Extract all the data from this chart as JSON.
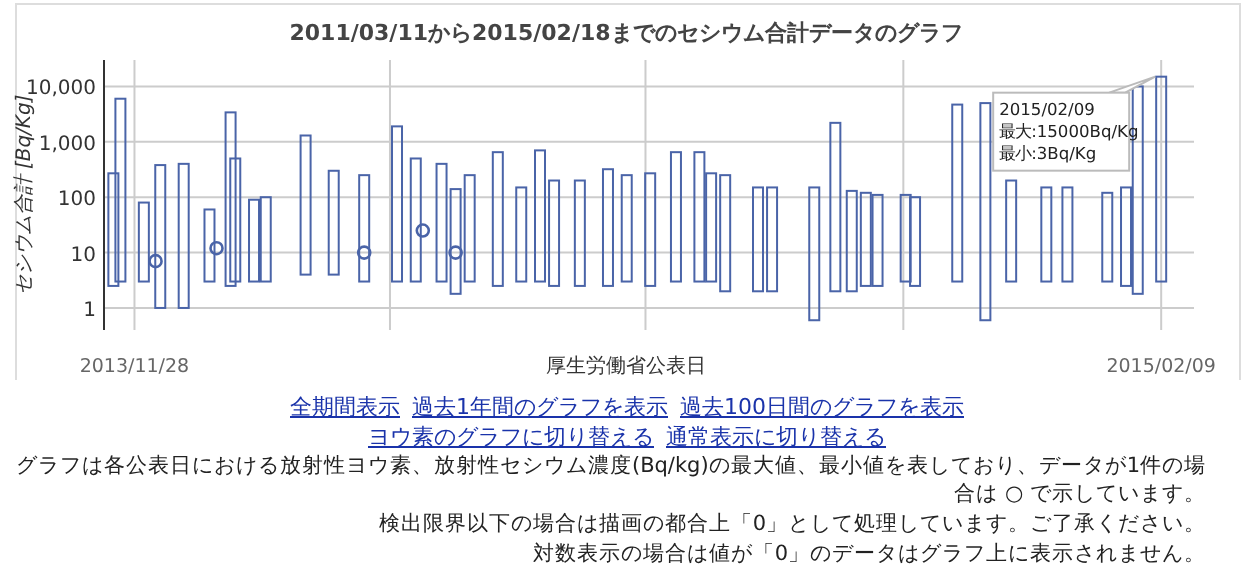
{
  "chart_data": {
    "type": "bar",
    "title": "2011/03/11から2015/02/18までのセシウム合計データのグラフ",
    "xlabel": "厚生労働省公表日",
    "ylabel": "セシウム合計 [Bq/Kg]",
    "log": "y",
    "grid": true,
    "xlim": [
      "2013-11-15",
      "2015-02-23"
    ],
    "xticks": [
      {
        "value": "2013-11-28",
        "label": "2013/11/28"
      },
      {
        "value": "2014-03-17",
        "label": null
      },
      {
        "value": "2014-07-04",
        "label": null
      },
      {
        "value": "2014-10-22",
        "label": null
      },
      {
        "value": "2015-02-09",
        "label": "2015/02/09"
      }
    ],
    "ylim": [
      0.4,
      30000
    ],
    "yticks": [
      {
        "value": 1,
        "label": "1"
      },
      {
        "value": 10,
        "label": "10"
      },
      {
        "value": 100,
        "label": "100"
      },
      {
        "value": 1000,
        "label": "1,000"
      },
      {
        "value": 10000,
        "label": "10,000"
      }
    ],
    "series": [
      {
        "type": "bar",
        "color": "#4a64a8",
        "x": [
          "2013-11-19",
          "2013-11-22",
          "2013-12-02",
          "2013-12-09",
          "2013-12-19",
          "2013-12-30",
          "2014-01-08",
          "2014-01-10",
          "2014-01-18",
          "2014-01-23",
          "2014-02-09",
          "2014-02-21",
          "2014-03-06",
          "2014-03-20",
          "2014-03-28",
          "2014-04-08",
          "2014-04-14",
          "2014-04-20",
          "2014-05-02",
          "2014-05-12",
          "2014-05-20",
          "2014-05-26",
          "2014-06-06",
          "2014-06-18",
          "2014-06-26",
          "2014-07-06",
          "2014-07-17",
          "2014-07-27",
          "2014-08-01",
          "2014-08-07",
          "2014-08-21",
          "2014-08-27",
          "2014-09-14",
          "2014-09-23",
          "2014-09-30",
          "2014-10-06",
          "2014-10-11",
          "2014-10-23",
          "2014-10-27",
          "2014-11-14",
          "2014-11-26",
          "2014-12-07",
          "2014-12-22",
          "2014-12-31",
          "2015-01-17",
          "2015-01-25",
          "2015-01-30",
          "2015-02-09"
        ],
        "base": [
          2.5,
          3,
          3,
          1,
          1,
          3,
          2.5,
          3,
          3,
          3,
          4,
          4,
          3,
          3,
          3,
          3,
          1.8,
          3,
          2.5,
          3,
          3,
          2.5,
          2.5,
          2.5,
          3,
          2.5,
          3,
          3,
          3,
          2,
          2,
          2,
          0.6,
          2,
          2,
          2.5,
          2.5,
          3,
          2.5,
          3,
          0.6,
          3,
          3,
          3,
          3,
          2.5,
          1.8,
          3
        ],
        "values": [
          267.5,
          5997,
          77,
          379,
          399,
          57,
          3397.5,
          497,
          87,
          97,
          1296,
          296,
          247,
          1897,
          497,
          397,
          138.2,
          247,
          647.5,
          147,
          697,
          197.5,
          197.5,
          317.5,
          247,
          267.5,
          647,
          647,
          267,
          248,
          148,
          148,
          149.4,
          2198,
          128,
          117.5,
          107.5,
          107,
          97.5,
          4697,
          4999.4,
          197,
          147,
          147,
          117,
          147.5,
          9998.2,
          14997
        ]
      },
      {
        "type": "scatter",
        "color": "#4a64a8",
        "marker": "circle",
        "x": [
          "2013-12-07",
          "2014-01-02",
          "2014-03-06",
          "2014-03-31",
          "2014-04-14"
        ],
        "values": [
          7,
          12,
          10,
          25,
          10
        ]
      }
    ],
    "annotations": [
      {
        "text": "2015/02/09\n最大:15000Bq/Kg\n最小:3Bq/Kg",
        "x": "2015-02-09",
        "y": 15000
      },
      "全期間表示",
      "過去1年間のグラフを表示",
      "過去100日間のグラフを表示",
      "ヨウ素のグラフに切り替える",
      "通常表示に切り替える",
      "グラフは各公表日における放射性ヨウ素、放射性セシウム濃度(Bq/kg)の最大値、最小値を表しており、データが1件の場合は ○ で示しています。",
      "検出限界以下の場合は描画の都合上「0」として処理しています。ご了承ください。",
      "対数表示の場合は値が「0」のデータはグラフ上に表示されません。"
    ]
  }
}
